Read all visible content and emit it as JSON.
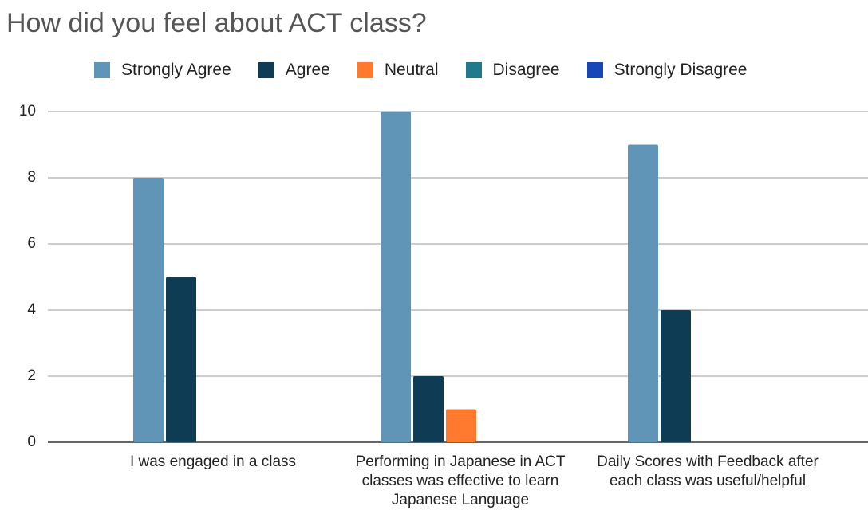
{
  "chart_data": {
    "type": "bar",
    "title": "How did you feel about ACT class?",
    "categories": [
      "I was engaged in a class",
      "Performing in Japanese in ACT classes was effective to learn Japanese Language",
      "Daily Scores with Feedback after each class was useful/helpful"
    ],
    "series": [
      {
        "name": "Strongly Agree",
        "color": "#6195b8",
        "values": [
          8,
          10,
          9
        ]
      },
      {
        "name": "Agree",
        "color": "#0f3c55",
        "values": [
          5,
          2,
          4
        ]
      },
      {
        "name": "Neutral",
        "color": "#ff7a2f",
        "values": [
          0,
          1,
          0
        ]
      },
      {
        "name": "Disagree",
        "color": "#1e7a8c",
        "values": [
          0,
          0,
          0
        ]
      },
      {
        "name": "Strongly Disagree",
        "color": "#1646b8",
        "values": [
          0,
          0,
          0
        ]
      }
    ],
    "ylim": [
      0,
      10
    ],
    "yticks": [
      0,
      2,
      4,
      6,
      8,
      10
    ],
    "grid": true,
    "legend": "top"
  }
}
